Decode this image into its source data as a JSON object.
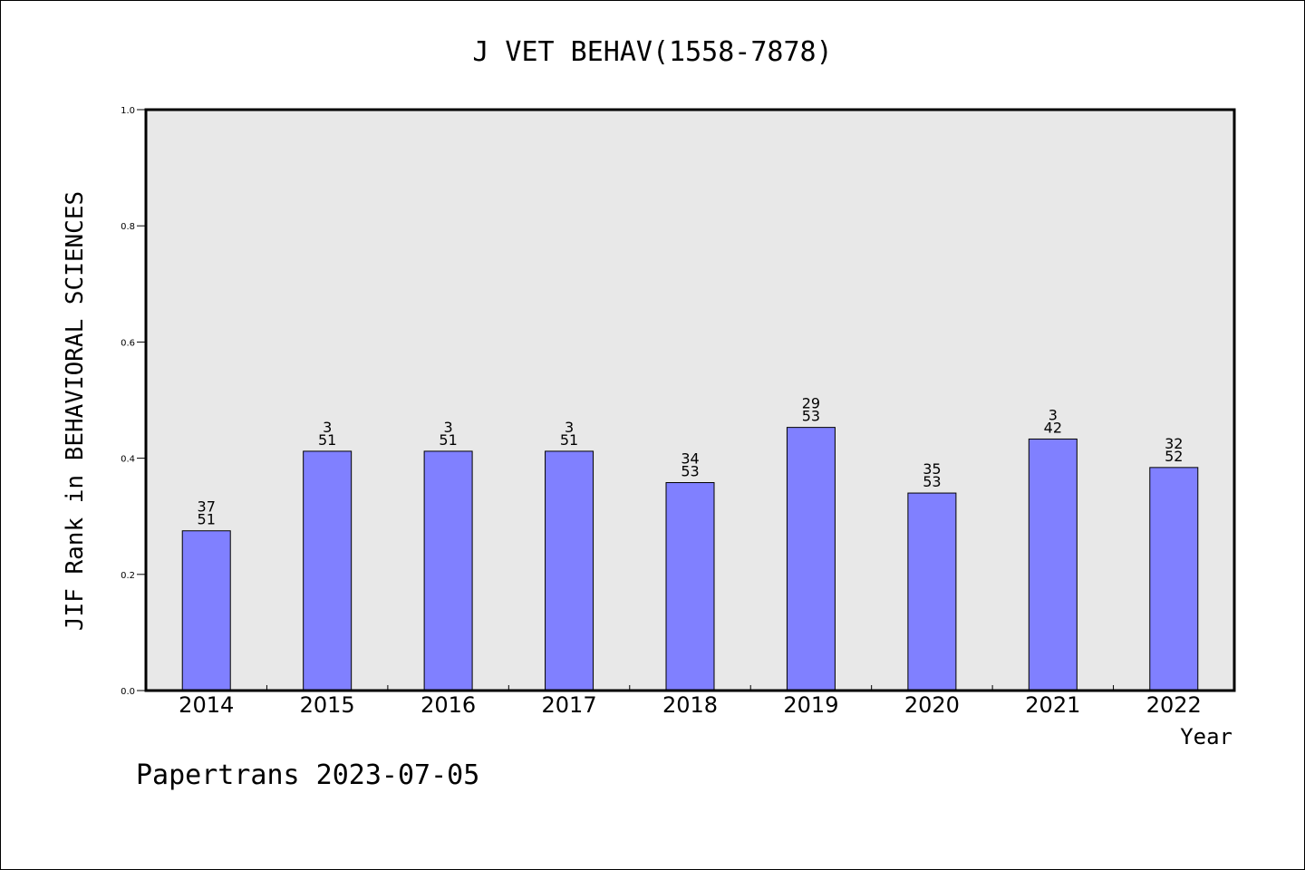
{
  "chart_data": {
    "type": "bar",
    "title": "J VET BEHAV(1558-7878)",
    "xlabel": "Year",
    "ylabel": "JIF Rank in BEHAVIORAL SCIENCES",
    "ylim": [
      0,
      1.0
    ],
    "yticks": [
      "0.0",
      "0.2",
      "0.4",
      "0.6",
      "0.8",
      "1.0"
    ],
    "grid": false,
    "categories": [
      "2014",
      "2015",
      "2016",
      "2017",
      "2018",
      "2019",
      "2020",
      "2021",
      "2022"
    ],
    "values": [
      0.275,
      0.412,
      0.412,
      0.412,
      0.358,
      0.453,
      0.34,
      0.433,
      0.384
    ],
    "labels_top": [
      "37",
      "3",
      "3",
      "3",
      "34",
      "29",
      "35",
      "3",
      "32"
    ],
    "labels_bottom": [
      "51",
      "51",
      "51",
      "51",
      "53",
      "53",
      "53",
      "42",
      "52"
    ],
    "bar_color": "#8080ff",
    "plot_background": "#e8e8e8"
  },
  "footer": "Papertrans 2023-07-05"
}
